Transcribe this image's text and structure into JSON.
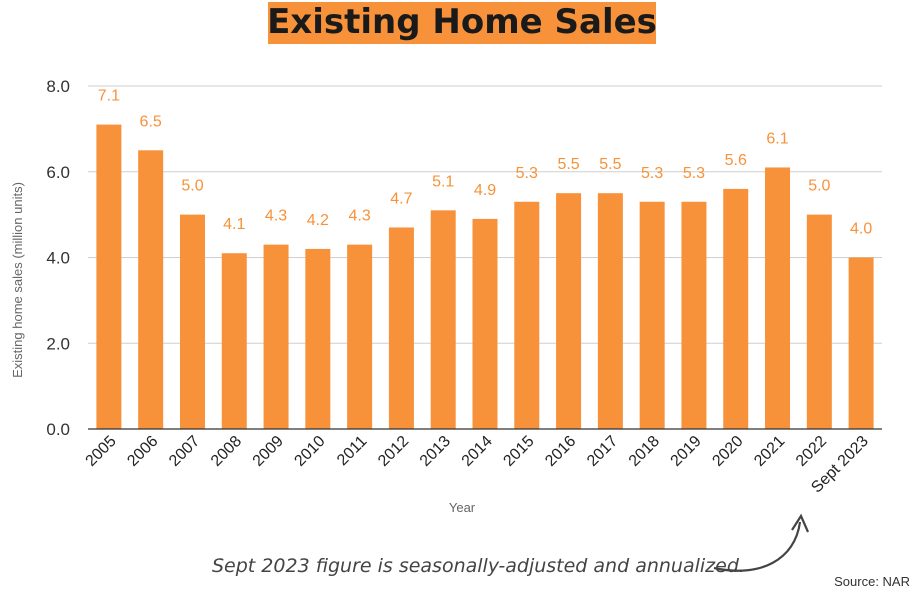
{
  "chart_data": {
    "type": "bar",
    "title": "Existing Home Sales",
    "xlabel": "Year",
    "ylabel": "Existing home sales (million units)",
    "ylim": [
      0,
      8
    ],
    "yticks": [
      "0.0",
      "2.0",
      "4.0",
      "6.0",
      "8.0"
    ],
    "grid": true,
    "categories": [
      "2005",
      "2006",
      "2007",
      "2008",
      "2009",
      "2010",
      "2011",
      "2012",
      "2013",
      "2014",
      "2015",
      "2016",
      "2017",
      "2018",
      "2019",
      "2020",
      "2021",
      "2022",
      "Sept 2023"
    ],
    "values": [
      7.1,
      6.5,
      5.0,
      4.1,
      4.3,
      4.2,
      4.3,
      4.7,
      5.1,
      4.9,
      5.3,
      5.5,
      5.5,
      5.3,
      5.3,
      5.6,
      6.1,
      5.0,
      4.0
    ],
    "data_labels": [
      "7.1",
      "6.5",
      "5.0",
      "4.1",
      "4.3",
      "4.2",
      "4.3",
      "4.7",
      "5.1",
      "4.9",
      "5.3",
      "5.5",
      "5.5",
      "5.3",
      "5.3",
      "5.6",
      "6.1",
      "5.0",
      "4.0"
    ],
    "annotation": "Sept 2023 figure is seasonally-adjusted and annualized.",
    "source": "Source: NAR",
    "colors": {
      "bar": "#F7923A",
      "label": "#F7923A",
      "title_bg": "#F7923A",
      "grid": "#cfcfcf",
      "text": "#333333"
    }
  }
}
